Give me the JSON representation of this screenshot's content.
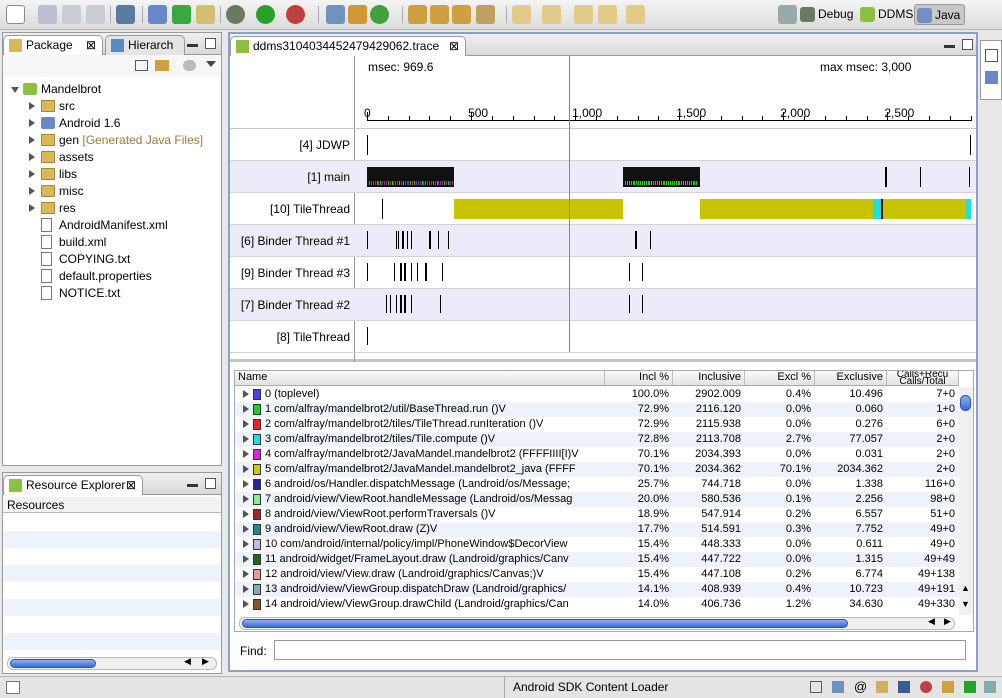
{
  "perspectives": {
    "debug": "Debug",
    "ddms": "DDMS",
    "java": "Java"
  },
  "package_explorer": {
    "tabs": [
      "Package",
      "Hierarch"
    ],
    "tree": [
      {
        "label": "Mandelbrot",
        "annotation": "",
        "level": 0,
        "twisty": "down",
        "icon": "project"
      },
      {
        "label": "src",
        "annotation": "",
        "level": 1,
        "twisty": "right",
        "icon": "folder"
      },
      {
        "label": "Android 1.6",
        "annotation": "",
        "level": 1,
        "twisty": "right",
        "icon": "library"
      },
      {
        "label": "gen",
        "annotation": "[Generated Java Files]",
        "level": 1,
        "twisty": "right",
        "icon": "folder"
      },
      {
        "label": "assets",
        "annotation": "",
        "level": 1,
        "twisty": "right",
        "icon": "folder"
      },
      {
        "label": "libs",
        "annotation": "",
        "level": 1,
        "twisty": "right",
        "icon": "folder"
      },
      {
        "label": "misc",
        "annotation": "",
        "level": 1,
        "twisty": "right",
        "icon": "folder"
      },
      {
        "label": "res",
        "annotation": "",
        "level": 1,
        "twisty": "right",
        "icon": "folder"
      },
      {
        "label": "AndroidManifest.xml",
        "annotation": "",
        "level": 1,
        "twisty": "",
        "icon": "file"
      },
      {
        "label": "build.xml",
        "annotation": "",
        "level": 1,
        "twisty": "",
        "icon": "file"
      },
      {
        "label": "COPYING.txt",
        "annotation": "",
        "level": 1,
        "twisty": "",
        "icon": "file"
      },
      {
        "label": "default.properties",
        "annotation": "",
        "level": 1,
        "twisty": "",
        "icon": "file"
      },
      {
        "label": "NOTICE.txt",
        "annotation": "",
        "level": 1,
        "twisty": "",
        "icon": "file"
      }
    ]
  },
  "resource_explorer": {
    "title": "Resource Explorer",
    "column_header": "Resources"
  },
  "editor": {
    "tab_title": "ddms3104034452479429062.trace",
    "msec_label": "msec: 969.6",
    "max_msec_label": "max msec: 3,000",
    "axis": {
      "ticks": [
        0,
        500,
        1000,
        1500,
        2000,
        2500
      ],
      "tick_labels": [
        "0",
        "500",
        "1,000",
        "1,500",
        "2,000",
        "2,500"
      ],
      "range": [
        0,
        2902
      ],
      "cursor": 969.6
    },
    "lanes": [
      {
        "name": "[4] JDWP"
      },
      {
        "name": "[1] main"
      },
      {
        "name": "[10] TileThread"
      },
      {
        "name": "[6] Binder Thread #1"
      },
      {
        "name": "[9] Binder Thread #3"
      },
      {
        "name": "[7] Binder Thread #2"
      },
      {
        "name": "[8] TileThread"
      }
    ],
    "table": {
      "headers": [
        "Name",
        "Incl %",
        "Inclusive",
        "Excl %",
        "Exclusive",
        "Calls+Recu Calls/Total"
      ],
      "rows": [
        {
          "name": "0 (toplevel)",
          "color": "#4444ee",
          "incl_pct": "100.0%",
          "inclusive": "2902.009",
          "excl_pct": "0.4%",
          "exclusive": "10.496",
          "calls": "7+0"
        },
        {
          "name": "1 com/alfray/mandelbrot2/util/BaseThread.run ()V",
          "color": "#22cc22",
          "incl_pct": "72.9%",
          "inclusive": "2116.120",
          "excl_pct": "0.0%",
          "exclusive": "0.060",
          "calls": "1+0"
        },
        {
          "name": "2 com/alfray/mandelbrot2/tiles/TileThread.runIteration ()V",
          "color": "#ee2222",
          "incl_pct": "72.9%",
          "inclusive": "2115.938",
          "excl_pct": "0.0%",
          "exclusive": "0.276",
          "calls": "6+0"
        },
        {
          "name": "3 com/alfray/mandelbrot2/tiles/Tile.compute ()V",
          "color": "#22dddd",
          "incl_pct": "72.8%",
          "inclusive": "2113.708",
          "excl_pct": "2.7%",
          "exclusive": "77.057",
          "calls": "2+0"
        },
        {
          "name": "4 com/alfray/mandelbrot2/JavaMandel.mandelbrot2 (FFFFIIII[I)V",
          "color": "#dd22dd",
          "incl_pct": "70.1%",
          "inclusive": "2034.393",
          "excl_pct": "0.0%",
          "exclusive": "0.031",
          "calls": "2+0"
        },
        {
          "name": "5 com/alfray/mandelbrot2/JavaMandel.mandelbrot2_java (FFFF",
          "color": "#cccc00",
          "incl_pct": "70.1%",
          "inclusive": "2034.362",
          "excl_pct": "70.1%",
          "exclusive": "2034.362",
          "calls": "2+0"
        },
        {
          "name": "6 android/os/Handler.dispatchMessage (Landroid/os/Message;",
          "color": "#2222aa",
          "incl_pct": "25.7%",
          "inclusive": "744.718",
          "excl_pct": "0.0%",
          "exclusive": "1.338",
          "calls": "116+0"
        },
        {
          "name": "7 android/view/ViewRoot.handleMessage (Landroid/os/Messag",
          "color": "#88ee88",
          "incl_pct": "20.0%",
          "inclusive": "580.536",
          "excl_pct": "0.1%",
          "exclusive": "2.256",
          "calls": "98+0"
        },
        {
          "name": "8 android/view/ViewRoot.performTraversals ()V",
          "color": "#aa2222",
          "incl_pct": "18.9%",
          "inclusive": "547.914",
          "excl_pct": "0.2%",
          "exclusive": "6.557",
          "calls": "51+0"
        },
        {
          "name": "9 android/view/ViewRoot.draw (Z)V",
          "color": "#228888",
          "incl_pct": "17.7%",
          "inclusive": "514.591",
          "excl_pct": "0.3%",
          "exclusive": "7.752",
          "calls": "49+0"
        },
        {
          "name": "10 com/android/internal/policy/impl/PhoneWindow$DecorView",
          "color": "#bbbbee",
          "incl_pct": "15.4%",
          "inclusive": "448.333",
          "excl_pct": "0.0%",
          "exclusive": "0.611",
          "calls": "49+0"
        },
        {
          "name": "11 android/widget/FrameLayout.draw (Landroid/graphics/Canv",
          "color": "#226622",
          "incl_pct": "15.4%",
          "inclusive": "447.722",
          "excl_pct": "0.0%",
          "exclusive": "1.315",
          "calls": "49+49"
        },
        {
          "name": "12 android/view/View.draw (Landroid/graphics/Canvas;)V",
          "color": "#ee9999",
          "incl_pct": "15.4%",
          "inclusive": "447.108",
          "excl_pct": "0.2%",
          "exclusive": "6.774",
          "calls": "49+138"
        },
        {
          "name": "13 android/view/ViewGroup.dispatchDraw (Landroid/graphics/",
          "color": "#88aaaa",
          "incl_pct": "14.1%",
          "inclusive": "408.939",
          "excl_pct": "0.4%",
          "exclusive": "10.723",
          "calls": "49+191"
        },
        {
          "name": "14 android/view/ViewGroup.drawChild (Landroid/graphics/Can",
          "color": "#885522",
          "incl_pct": "14.0%",
          "inclusive": "406.736",
          "excl_pct": "1.2%",
          "exclusive": "34.630",
          "calls": "49+330"
        }
      ]
    },
    "find_label": "Find:",
    "find_value": ""
  },
  "status": {
    "message": "Android SDK Content Loader"
  }
}
